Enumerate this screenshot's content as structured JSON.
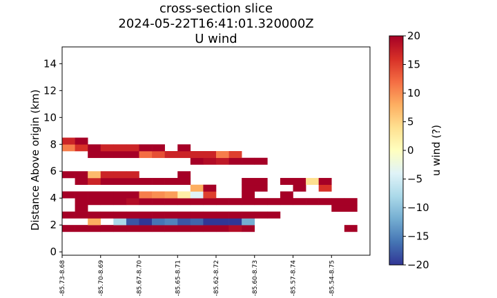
{
  "chart_data": {
    "type": "heatmap",
    "title": [
      "cross-section slice",
      "2024-05-22T16:41:01.320000Z",
      "U wind"
    ],
    "xlabel": "",
    "ylabel": "Distance Above origin (km)",
    "xtick_labels": [
      "-85.73-8.68",
      "-85.70-8.69",
      "-85.67-8.70",
      "-85.65-8.71",
      "-85.62-8.72",
      "-85.60-8.73",
      "-85.57-8.74",
      "-85.54-8.75"
    ],
    "ylim": [
      -0.25,
      15.25
    ],
    "yticks": [
      0,
      2,
      4,
      6,
      8,
      10,
      12,
      14
    ],
    "x_index_range": [
      0,
      23
    ],
    "row_height_km": 0.5,
    "colorbar": {
      "label": "u wind (?)",
      "min": -20,
      "max": 20,
      "ticks": [
        -20,
        -15,
        -10,
        -5,
        0,
        5,
        10,
        15,
        20
      ],
      "colormap": "RdYlBu_r"
    },
    "rows": [
      {
        "z": 1.5,
        "cells": [
          [
            0,
            20
          ],
          [
            1,
            20
          ],
          [
            2,
            20
          ],
          [
            3,
            20
          ],
          [
            4,
            20
          ],
          [
            5,
            20
          ],
          [
            6,
            20
          ],
          [
            7,
            20
          ],
          [
            8,
            20
          ],
          [
            9,
            20
          ],
          [
            10,
            20
          ],
          [
            11,
            20
          ],
          [
            12,
            20
          ],
          [
            13,
            19
          ],
          [
            14,
            20
          ],
          [
            22,
            20
          ]
        ]
      },
      {
        "z": 2.0,
        "cells": [
          [
            2,
            8
          ],
          [
            4,
            -8
          ],
          [
            5,
            -18
          ],
          [
            6,
            -20
          ],
          [
            7,
            -16
          ],
          [
            8,
            -15
          ],
          [
            9,
            -18
          ],
          [
            10,
            -17
          ],
          [
            11,
            -20
          ],
          [
            12,
            -20
          ],
          [
            13,
            -20
          ],
          [
            14,
            -12
          ]
        ]
      },
      {
        "z": 2.5,
        "cells": [
          [
            0,
            20
          ],
          [
            1,
            20
          ],
          [
            2,
            20
          ],
          [
            3,
            20
          ],
          [
            4,
            20
          ],
          [
            5,
            20
          ],
          [
            6,
            20
          ],
          [
            7,
            20
          ],
          [
            8,
            20
          ],
          [
            9,
            20
          ],
          [
            10,
            20
          ],
          [
            11,
            20
          ],
          [
            12,
            20
          ],
          [
            13,
            20
          ],
          [
            14,
            20
          ],
          [
            15,
            20
          ],
          [
            16,
            20
          ]
        ]
      },
      {
        "z": 3.0,
        "cells": [
          [
            1,
            20
          ],
          [
            21,
            20
          ],
          [
            22,
            20
          ]
        ]
      },
      {
        "z": 3.5,
        "cells": [
          [
            1,
            20
          ],
          [
            2,
            20
          ],
          [
            3,
            20
          ],
          [
            4,
            20
          ],
          [
            5,
            19
          ],
          [
            6,
            20
          ],
          [
            7,
            20
          ],
          [
            8,
            20
          ],
          [
            9,
            20
          ],
          [
            10,
            20
          ],
          [
            11,
            20
          ],
          [
            12,
            20
          ],
          [
            13,
            20
          ],
          [
            14,
            20
          ],
          [
            15,
            20
          ],
          [
            16,
            20
          ],
          [
            17,
            20
          ],
          [
            18,
            20
          ],
          [
            19,
            20
          ],
          [
            20,
            20
          ],
          [
            21,
            20
          ],
          [
            22,
            20
          ]
        ]
      },
      {
        "z": 4.0,
        "cells": [
          [
            0,
            20
          ],
          [
            1,
            20
          ],
          [
            2,
            20
          ],
          [
            3,
            20
          ],
          [
            4,
            20
          ],
          [
            5,
            20
          ],
          [
            6,
            11
          ],
          [
            7,
            10
          ],
          [
            8,
            9
          ],
          [
            9,
            2
          ],
          [
            10,
            -4
          ],
          [
            11,
            15
          ],
          [
            14,
            20
          ],
          [
            17,
            20
          ]
        ]
      },
      {
        "z": 4.5,
        "cells": [
          [
            10,
            8
          ],
          [
            11,
            20
          ],
          [
            14,
            20
          ],
          [
            15,
            20
          ],
          [
            18,
            20
          ],
          [
            20,
            16
          ]
        ]
      },
      {
        "z": 5.0,
        "cells": [
          [
            1,
            20
          ],
          [
            2,
            17
          ],
          [
            3,
            20
          ],
          [
            4,
            20
          ],
          [
            5,
            20
          ],
          [
            6,
            20
          ],
          [
            7,
            20
          ],
          [
            8,
            20
          ],
          [
            9,
            20
          ],
          [
            14,
            20
          ],
          [
            15,
            20
          ],
          [
            17,
            20
          ],
          [
            18,
            20
          ],
          [
            19,
            4
          ],
          [
            20,
            20
          ]
        ]
      },
      {
        "z": 5.5,
        "cells": [
          [
            0,
            20
          ],
          [
            1,
            20
          ],
          [
            2,
            7
          ],
          [
            3,
            17
          ],
          [
            4,
            17
          ],
          [
            5,
            17
          ],
          [
            9,
            20
          ]
        ]
      },
      {
        "z": 6.5,
        "cells": [
          [
            10,
            20
          ],
          [
            11,
            19
          ],
          [
            12,
            18
          ],
          [
            13,
            20
          ],
          [
            14,
            20
          ],
          [
            15,
            20
          ]
        ]
      },
      {
        "z": 7.0,
        "cells": [
          [
            2,
            20
          ],
          [
            3,
            20
          ],
          [
            4,
            20
          ],
          [
            5,
            20
          ],
          [
            6,
            12
          ],
          [
            7,
            14
          ],
          [
            8,
            17
          ],
          [
            9,
            17
          ],
          [
            10,
            17
          ],
          [
            11,
            17
          ],
          [
            12,
            11
          ],
          [
            13,
            15
          ]
        ]
      },
      {
        "z": 7.5,
        "cells": [
          [
            0,
            11
          ],
          [
            1,
            16
          ],
          [
            2,
            20
          ],
          [
            3,
            17
          ],
          [
            4,
            17
          ],
          [
            5,
            17
          ],
          [
            6,
            20
          ],
          [
            7,
            20
          ],
          [
            9,
            20
          ]
        ]
      },
      {
        "z": 8.0,
        "cells": [
          [
            0,
            17
          ],
          [
            1,
            20
          ]
        ]
      }
    ]
  }
}
